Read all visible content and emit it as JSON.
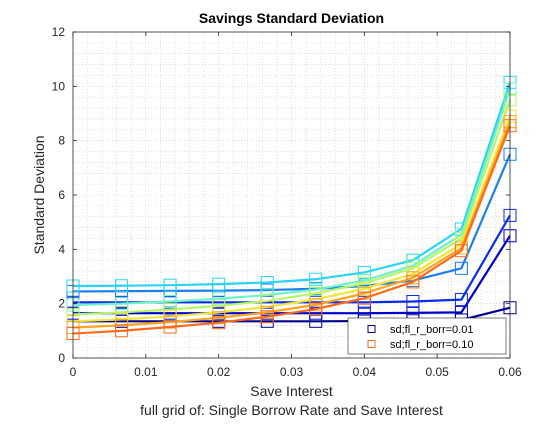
{
  "chart_data": {
    "type": "line",
    "title": "Savings Standard Deviation",
    "xlabel": "Save Interest",
    "ylabel": "Standard Deviation",
    "caption": "full grid of: Single Borrow Rate and Save Interest",
    "xlim": [
      0,
      0.06
    ],
    "ylim": [
      0,
      12
    ],
    "x_ticks": [
      0,
      0.01,
      0.02,
      0.03,
      0.04,
      0.05,
      0.06
    ],
    "x_tick_labels": [
      "0",
      "0.01",
      "0.02",
      "0.03",
      "0.04",
      "0.05",
      "0.06"
    ],
    "y_ticks": [
      0,
      2,
      4,
      6,
      8,
      10,
      12
    ],
    "y_tick_labels": [
      "0",
      "2",
      "4",
      "6",
      "8",
      "10",
      "12"
    ],
    "grid": "minor dotted",
    "marker": "square",
    "legend": {
      "placement": "bottom-right",
      "entries": [
        {
          "label": "sd;fl_r_borr=0.01",
          "color": "#00008F"
        },
        {
          "label": "sd;fl_r_borr=0.10",
          "color": "#FF6A1A"
        }
      ]
    },
    "x": [
      0,
      0.00667,
      0.01333,
      0.02,
      0.02667,
      0.03333,
      0.04,
      0.04667,
      0.05333,
      0.06
    ],
    "series": [
      {
        "color": "#00008F",
        "values": [
          1.35,
          1.35,
          1.35,
          1.35,
          1.35,
          1.35,
          1.36,
          1.37,
          1.4,
          1.85
        ]
      },
      {
        "color": "#0000CC",
        "values": [
          1.65,
          1.65,
          1.65,
          1.65,
          1.65,
          1.65,
          1.65,
          1.66,
          1.68,
          4.5
        ]
      },
      {
        "color": "#0A2CE8",
        "values": [
          2.05,
          2.05,
          2.05,
          2.05,
          2.05,
          2.05,
          2.05,
          2.08,
          2.15,
          5.25
        ]
      },
      {
        "color": "#1A7FE8",
        "values": [
          2.45,
          2.46,
          2.47,
          2.48,
          2.5,
          2.55,
          2.65,
          2.85,
          3.3,
          7.5
        ]
      },
      {
        "color": "#2BD4F0",
        "values": [
          2.65,
          2.66,
          2.68,
          2.72,
          2.78,
          2.9,
          3.15,
          3.6,
          4.75,
          10.15
        ]
      },
      {
        "color": "#6EF2C8",
        "values": [
          1.95,
          2.0,
          2.08,
          2.18,
          2.32,
          2.52,
          2.85,
          3.4,
          4.55,
          9.9
        ]
      },
      {
        "color": "#B5F56A",
        "values": [
          1.6,
          1.68,
          1.78,
          1.92,
          2.1,
          2.38,
          2.75,
          3.3,
          4.4,
          9.5
        ]
      },
      {
        "color": "#F0E63A",
        "values": [
          1.35,
          1.42,
          1.53,
          1.68,
          1.88,
          2.16,
          2.55,
          3.1,
          4.2,
          8.9
        ]
      },
      {
        "color": "#FFA51E",
        "values": [
          1.12,
          1.2,
          1.32,
          1.48,
          1.68,
          1.96,
          2.38,
          2.95,
          4.05,
          8.7
        ]
      },
      {
        "color": "#FF6A1A",
        "values": [
          0.9,
          1.0,
          1.14,
          1.3,
          1.52,
          1.8,
          2.2,
          2.8,
          3.95,
          8.55
        ]
      }
    ]
  }
}
